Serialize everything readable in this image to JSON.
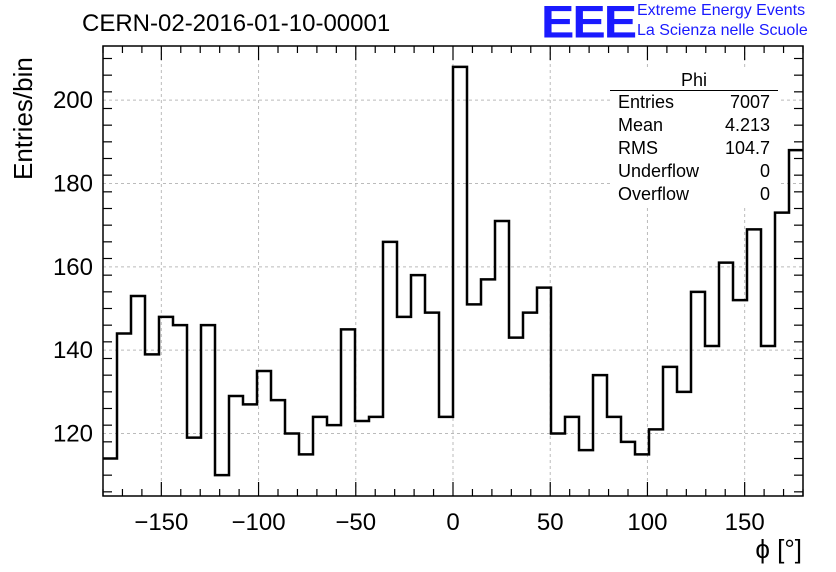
{
  "page_title": "CERN-02-2016-01-10-00001",
  "logo": {
    "mark": "EEE",
    "line1": "Extreme Energy Events",
    "line2": "La Scienza nelle Scuole"
  },
  "stats": {
    "title": "Phi",
    "rows": [
      {
        "label": "Entries",
        "value": "7007"
      },
      {
        "label": "Mean",
        "value": "4.213"
      },
      {
        "label": "RMS",
        "value": "104.7"
      },
      {
        "label": "Underflow",
        "value": "0"
      },
      {
        "label": "Overflow",
        "value": "0"
      }
    ]
  },
  "chart_data": {
    "type": "bar",
    "style": "step-histogram",
    "title": "CERN-02-2016-01-10-00001",
    "xlabel": "ϕ [°]",
    "ylabel": "Entries/bin",
    "xlim": [
      -180,
      180
    ],
    "ylim": [
      105,
      213
    ],
    "xticks": [
      -150,
      -100,
      -50,
      0,
      50,
      100,
      150
    ],
    "yticks": [
      120,
      140,
      160,
      180,
      200
    ],
    "grid": true,
    "bin_width": 7.2,
    "bin_edges_start": -180,
    "values": [
      114,
      144,
      153,
      139,
      148,
      146,
      119,
      146,
      110,
      129,
      127,
      135,
      128,
      120,
      115,
      124,
      122,
      145,
      123,
      124,
      166,
      148,
      158,
      149,
      124,
      208,
      151,
      157,
      171,
      143,
      149,
      155,
      120,
      124,
      116,
      134,
      124,
      118,
      115,
      121,
      136,
      130,
      154,
      141,
      161,
      152,
      169,
      141,
      173,
      188
    ],
    "line_color": "#000000"
  }
}
